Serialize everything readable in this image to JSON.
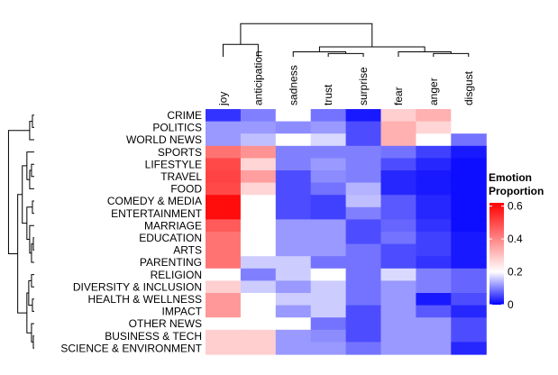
{
  "chart_data": {
    "type": "heatmap",
    "title": "",
    "legend": {
      "title_lines": [
        "Emotion",
        "Proportion"
      ],
      "ticks": [
        "0",
        "0.2",
        "0.4",
        "0.6"
      ],
      "tick_values": [
        0,
        0.2,
        0.4,
        0.6
      ],
      "range": [
        0,
        0.62
      ],
      "mid": 0.2,
      "placement": "right",
      "colors": {
        "low": "#0000ff",
        "mid": "#ffffff",
        "high": "#ff0000"
      }
    },
    "columns": [
      "joy",
      "anticipation",
      "sadness",
      "trust",
      "surprise",
      "fear",
      "anger",
      "disgust"
    ],
    "rows": [
      "CRIME",
      "POLITICS",
      "WORLD NEWS",
      "SPORTS",
      "LIFESTYLE",
      "TRAVEL",
      "FOOD",
      "COMEDY & MEDIA",
      "ENTERTAINMENT",
      "MARRIAGE",
      "EDUCATION",
      "ARTS",
      "PARENTING",
      "RELIGION",
      "DIVERSITY & INCLUSION",
      "HEALTH & WELLNESS",
      "IMPACT",
      "OTHER NEWS",
      "BUSINESS & TECH",
      "SCIENCE & ENVIRONMENT"
    ],
    "values": [
      [
        0.04,
        0.1,
        0.2,
        0.09,
        0.02,
        0.28,
        0.33,
        0.2
      ],
      [
        0.12,
        0.12,
        0.11,
        0.12,
        0.06,
        0.33,
        0.27,
        0.2
      ],
      [
        0.12,
        0.15,
        0.2,
        0.17,
        0.06,
        0.33,
        0.2,
        0.09
      ],
      [
        0.43,
        0.38,
        0.1,
        0.1,
        0.1,
        0.09,
        0.05,
        0.02
      ],
      [
        0.5,
        0.27,
        0.1,
        0.12,
        0.1,
        0.06,
        0.03,
        0.01
      ],
      [
        0.51,
        0.36,
        0.06,
        0.11,
        0.1,
        0.03,
        0.02,
        0.01
      ],
      [
        0.5,
        0.27,
        0.06,
        0.09,
        0.14,
        0.03,
        0.02,
        0.01
      ],
      [
        0.6,
        0.2,
        0.06,
        0.05,
        0.15,
        0.07,
        0.03,
        0.01
      ],
      [
        0.6,
        0.2,
        0.06,
        0.05,
        0.1,
        0.07,
        0.03,
        0.01
      ],
      [
        0.47,
        0.2,
        0.12,
        0.12,
        0.06,
        0.08,
        0.04,
        0.01
      ],
      [
        0.43,
        0.2,
        0.12,
        0.12,
        0.06,
        0.09,
        0.05,
        0.02
      ],
      [
        0.43,
        0.2,
        0.12,
        0.12,
        0.09,
        0.06,
        0.05,
        0.02
      ],
      [
        0.43,
        0.16,
        0.16,
        0.09,
        0.09,
        0.06,
        0.04,
        0.02
      ],
      [
        0.2,
        0.1,
        0.16,
        0.2,
        0.09,
        0.17,
        0.1,
        0.08
      ],
      [
        0.28,
        0.16,
        0.12,
        0.16,
        0.09,
        0.12,
        0.1,
        0.08
      ],
      [
        0.37,
        0.2,
        0.16,
        0.16,
        0.09,
        0.12,
        0.02,
        0.06
      ],
      [
        0.37,
        0.2,
        0.12,
        0.16,
        0.06,
        0.12,
        0.07,
        0.03
      ],
      [
        0.2,
        0.2,
        0.2,
        0.09,
        0.06,
        0.12,
        0.12,
        0.06
      ],
      [
        0.28,
        0.28,
        0.12,
        0.11,
        0.06,
        0.12,
        0.12,
        0.06
      ],
      [
        0.28,
        0.28,
        0.12,
        0.12,
        0.09,
        0.12,
        0.12,
        0.03
      ]
    ],
    "row_dendrogram": {
      "order": [
        0,
        1,
        2,
        3,
        4,
        5,
        6,
        7,
        8,
        9,
        10,
        11,
        12,
        13,
        14,
        15,
        16,
        17,
        18,
        19
      ],
      "merges": [
        {
          "a": "r0",
          "b": "r1",
          "h": 0.02
        },
        {
          "a": "m0",
          "b": "r2",
          "h": 0.05
        },
        {
          "a": "r4",
          "b": "r5",
          "h": 0.03
        },
        {
          "a": "m2",
          "b": "r6",
          "h": 0.05
        },
        {
          "a": "r3",
          "b": "m3",
          "h": 0.08
        },
        {
          "a": "r7",
          "b": "r8",
          "h": 0.02
        },
        {
          "a": "r10",
          "b": "r11",
          "h": 0.01
        },
        {
          "a": "m6",
          "b": "r12",
          "h": 0.03
        },
        {
          "a": "r9",
          "b": "m7",
          "h": 0.05
        },
        {
          "a": "m5",
          "b": "m8",
          "h": 0.08
        },
        {
          "a": "m4",
          "b": "m9",
          "h": 0.13
        },
        {
          "a": "r13",
          "b": "r14",
          "h": 0.03
        },
        {
          "a": "r15",
          "b": "r16",
          "h": 0.02
        },
        {
          "a": "m11",
          "b": "m12",
          "h": 0.06
        },
        {
          "a": "r18",
          "b": "r19",
          "h": 0.01
        },
        {
          "a": "r17",
          "b": "m14",
          "h": 0.03
        },
        {
          "a": "m13",
          "b": "m15",
          "h": 0.08
        },
        {
          "a": "m10",
          "b": "m16",
          "h": 0.18
        },
        {
          "a": "m1",
          "b": "m17",
          "h": 0.28
        }
      ]
    },
    "column_dendrogram": {
      "merges": [
        {
          "a": "c0",
          "b": "c1",
          "h": 0.15
        },
        {
          "a": "c3",
          "b": "c4",
          "h": 0.04
        },
        {
          "a": "c2",
          "b": "m1",
          "h": 0.06
        },
        {
          "a": "c6",
          "b": "c7",
          "h": 0.04
        },
        {
          "a": "c5",
          "b": "m3",
          "h": 0.06
        },
        {
          "a": "m2",
          "b": "m4",
          "h": 0.12
        },
        {
          "a": "m0",
          "b": "m5",
          "h": 0.4
        }
      ]
    }
  }
}
